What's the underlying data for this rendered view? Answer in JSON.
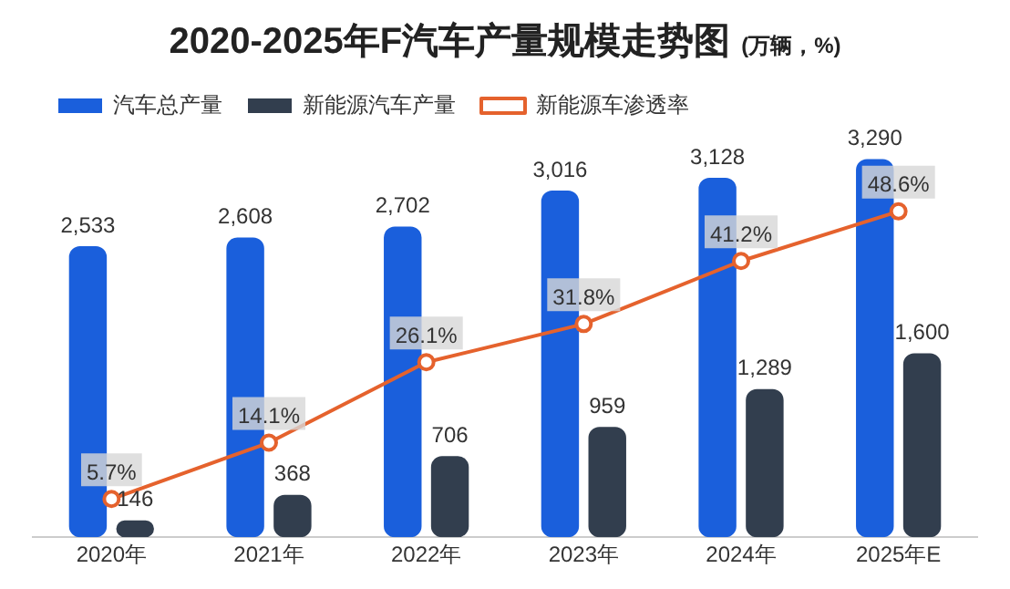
{
  "chart_data": {
    "type": "bar",
    "title": "2020-2025年F汽车产量规模走势图",
    "subtitle": "(万辆，%)",
    "categories": [
      "2020年",
      "2021年",
      "2022年",
      "2023年",
      "2024年",
      "2025年E"
    ],
    "series": [
      {
        "name": "汽车总产量",
        "color": "#1a5fdc",
        "values": [
          2533,
          2608,
          2702,
          3016,
          3128,
          3290
        ],
        "value_labels": [
          "2,533",
          "2,608",
          "2,702",
          "3,016",
          "3,128",
          "3,290"
        ]
      },
      {
        "name": "新能源汽车产量",
        "color": "#323e4e",
        "values": [
          146,
          368,
          706,
          959,
          1289,
          1600
        ],
        "value_labels": [
          "146",
          "368",
          "706",
          "959",
          "1,289",
          "1,600"
        ]
      },
      {
        "name": "新能源车渗透率",
        "type": "line",
        "axis": "y2",
        "color": "#e5622d",
        "values": [
          5.7,
          14.1,
          26.1,
          31.8,
          41.2,
          48.6
        ],
        "value_labels": [
          "5.7%",
          "14.1%",
          "26.1%",
          "31.8%",
          "41.2%",
          "48.6%"
        ]
      }
    ],
    "legend": "top left",
    "marker": "circle",
    "line_style": "solid",
    "grid": false,
    "tick_labels": "x"
  }
}
